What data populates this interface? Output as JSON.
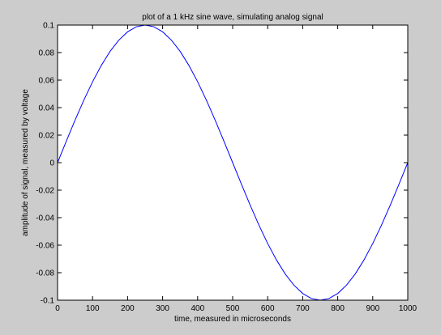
{
  "chart_data": {
    "type": "line",
    "title": "plot of a 1 kHz sine wave, simulating analog signal",
    "xlabel": "time, measured in microseconds",
    "ylabel": "amplitude of signal, measured by voltage",
    "xlim": [
      0,
      1000
    ],
    "ylim": [
      -0.1,
      0.1
    ],
    "xticks": [
      0,
      100,
      200,
      300,
      400,
      500,
      600,
      700,
      800,
      900,
      1000
    ],
    "xtick_labels": [
      "0",
      "100",
      "200",
      "300",
      "400",
      "500",
      "600",
      "700",
      "800",
      "900",
      "1000"
    ],
    "yticks": [
      -0.1,
      -0.08,
      -0.06,
      -0.04,
      -0.02,
      0,
      0.02,
      0.04,
      0.06,
      0.08,
      0.1
    ],
    "ytick_labels": [
      "-0.1",
      "-0.08",
      "-0.06",
      "-0.04",
      "-0.02",
      "0",
      "0.02",
      "0.04",
      "0.06",
      "0.08",
      "0.1"
    ],
    "grid": false,
    "series": [
      {
        "color": "#0000ff",
        "x": [
          0,
          25,
          50,
          75,
          100,
          125,
          150,
          175,
          200,
          225,
          250,
          275,
          300,
          325,
          350,
          375,
          400,
          425,
          450,
          475,
          500,
          525,
          550,
          575,
          600,
          625,
          650,
          675,
          700,
          725,
          750,
          775,
          800,
          825,
          850,
          875,
          900,
          925,
          950,
          975,
          1000
        ],
        "y": [
          0,
          0.0156,
          0.0309,
          0.0454,
          0.0588,
          0.0707,
          0.0809,
          0.0891,
          0.0951,
          0.0988,
          0.1,
          0.0988,
          0.0951,
          0.0891,
          0.0809,
          0.0707,
          0.0588,
          0.0454,
          0.0309,
          0.0156,
          0,
          -0.0156,
          -0.0309,
          -0.0454,
          -0.0588,
          -0.0707,
          -0.0809,
          -0.0891,
          -0.0951,
          -0.0988,
          -0.1,
          -0.0988,
          -0.0951,
          -0.0891,
          -0.0809,
          -0.0707,
          -0.0588,
          -0.0454,
          -0.0309,
          -0.0156,
          0
        ]
      }
    ]
  }
}
